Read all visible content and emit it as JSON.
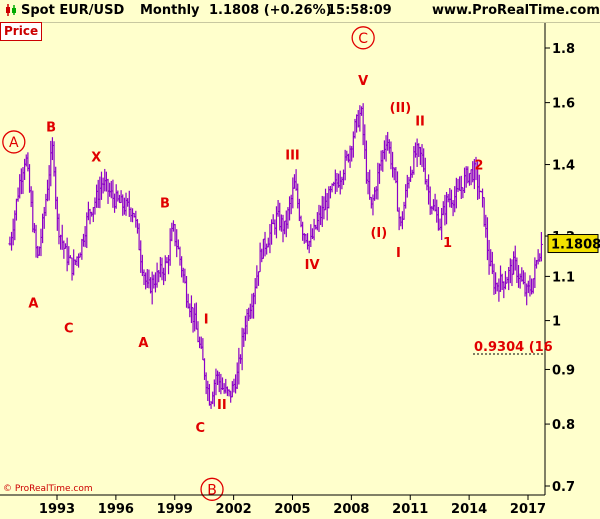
{
  "header": {
    "instrument": "Spot EUR/USD",
    "timeframe": "Monthly",
    "last_value": "1.1808 (+0.26%)",
    "time": "15:58:09",
    "site": "www.ProRealTime.com"
  },
  "panel_label": "Price",
  "copyright": "© ProRealTime.com",
  "current_price_label": "1.1808",
  "target_label": "0.9304 (16",
  "colors": {
    "background": "#ffffcc",
    "bars": "#8b00c8",
    "wave_labels": "#e00000",
    "price_box": "#f2e000"
  },
  "chart_data": {
    "type": "ohlc",
    "y_scale": "log",
    "ylim": [
      0.68,
      1.9
    ],
    "y_ticks": [
      "0.7",
      "0.8",
      "0.9",
      "1",
      "1.1",
      "1.2",
      "1.4",
      "1.6",
      "1.8"
    ],
    "x_ticks": [
      "1993",
      "1996",
      "1999",
      "2002",
      "2005",
      "2008",
      "2011",
      "2014",
      "2017"
    ],
    "x_range": [
      1990.5,
      2017.8
    ],
    "last_price": 1.1808,
    "target_level": 0.9304,
    "path": [
      [
        1990.6,
        1.18
      ],
      [
        1991.1,
        1.35
      ],
      [
        1991.4,
        1.43
      ],
      [
        1991.8,
        1.22
      ],
      [
        1992.0,
        1.14
      ],
      [
        1992.3,
        1.24
      ],
      [
        1992.6,
        1.38
      ],
      [
        1992.8,
        1.46
      ],
      [
        1993.0,
        1.24
      ],
      [
        1993.4,
        1.16
      ],
      [
        1993.8,
        1.12
      ],
      [
        1994.2,
        1.17
      ],
      [
        1994.6,
        1.26
      ],
      [
        1995.0,
        1.3
      ],
      [
        1995.3,
        1.35
      ],
      [
        1995.9,
        1.3
      ],
      [
        1996.4,
        1.28
      ],
      [
        1996.9,
        1.27
      ],
      [
        1997.3,
        1.14
      ],
      [
        1997.6,
        1.07
      ],
      [
        1998.1,
        1.1
      ],
      [
        1998.6,
        1.13
      ],
      [
        1998.9,
        1.22
      ],
      [
        1999.2,
        1.16
      ],
      [
        1999.6,
        1.06
      ],
      [
        2000.0,
        1.0
      ],
      [
        2000.4,
        0.92
      ],
      [
        2000.8,
        0.84
      ],
      [
        2001.1,
        0.89
      ],
      [
        2001.5,
        0.86
      ],
      [
        2001.8,
        0.85
      ],
      [
        2002.2,
        0.89
      ],
      [
        2002.6,
        1.0
      ],
      [
        2003.0,
        1.06
      ],
      [
        2003.4,
        1.16
      ],
      [
        2003.9,
        1.21
      ],
      [
        2004.2,
        1.25
      ],
      [
        2004.6,
        1.22
      ],
      [
        2004.9,
        1.29
      ],
      [
        2005.1,
        1.34
      ],
      [
        2005.5,
        1.22
      ],
      [
        2005.9,
        1.18
      ],
      [
        2006.3,
        1.24
      ],
      [
        2006.9,
        1.31
      ],
      [
        2007.3,
        1.35
      ],
      [
        2007.8,
        1.42
      ],
      [
        2008.2,
        1.52
      ],
      [
        2008.5,
        1.57
      ],
      [
        2008.8,
        1.35
      ],
      [
        2009.0,
        1.27
      ],
      [
        2009.4,
        1.38
      ],
      [
        2009.8,
        1.49
      ],
      [
        2010.2,
        1.36
      ],
      [
        2010.5,
        1.22
      ],
      [
        2010.9,
        1.36
      ],
      [
        2011.3,
        1.44
      ],
      [
        2011.6,
        1.42
      ],
      [
        2012.0,
        1.3
      ],
      [
        2012.5,
        1.23
      ],
      [
        2012.9,
        1.3
      ],
      [
        2013.4,
        1.31
      ],
      [
        2013.9,
        1.37
      ],
      [
        2014.3,
        1.38
      ],
      [
        2014.7,
        1.28
      ],
      [
        2015.0,
        1.14
      ],
      [
        2015.3,
        1.08
      ],
      [
        2015.8,
        1.09
      ],
      [
        2016.3,
        1.13
      ],
      [
        2016.9,
        1.06
      ],
      [
        2017.2,
        1.08
      ],
      [
        2017.5,
        1.15
      ],
      [
        2017.7,
        1.18
      ]
    ],
    "wave_labels": [
      {
        "text": "A",
        "x": 1990.8,
        "y": 1.47,
        "circled": true
      },
      {
        "text": "B",
        "x": 1992.7,
        "y": 1.52
      },
      {
        "text": "A",
        "x": 1991.8,
        "y": 1.04
      },
      {
        "text": "C",
        "x": 1993.6,
        "y": 0.985
      },
      {
        "text": "X",
        "x": 1995.0,
        "y": 1.425
      },
      {
        "text": "A",
        "x": 1997.4,
        "y": 0.955
      },
      {
        "text": "B",
        "x": 1998.5,
        "y": 1.29
      },
      {
        "text": "I",
        "x": 2000.6,
        "y": 1.005
      },
      {
        "text": "C",
        "x": 2000.3,
        "y": 0.795
      },
      {
        "text": "II",
        "x": 2001.4,
        "y": 0.835
      },
      {
        "text": "B",
        "x": 2000.9,
        "y": 0.695,
        "circled": true
      },
      {
        "text": "III",
        "x": 2005.0,
        "y": 1.43
      },
      {
        "text": "IV",
        "x": 2006.0,
        "y": 1.13
      },
      {
        "text": "C",
        "x": 2008.6,
        "y": 1.84,
        "circled": true
      },
      {
        "text": "V",
        "x": 2008.6,
        "y": 1.68
      },
      {
        "text": "(II)",
        "x": 2010.5,
        "y": 1.585
      },
      {
        "text": "II",
        "x": 2011.5,
        "y": 1.54
      },
      {
        "text": "(I)",
        "x": 2009.4,
        "y": 1.21
      },
      {
        "text": "I",
        "x": 2010.4,
        "y": 1.16
      },
      {
        "text": "1",
        "x": 2012.9,
        "y": 1.185
      },
      {
        "text": "2",
        "x": 2014.5,
        "y": 1.4
      }
    ]
  }
}
